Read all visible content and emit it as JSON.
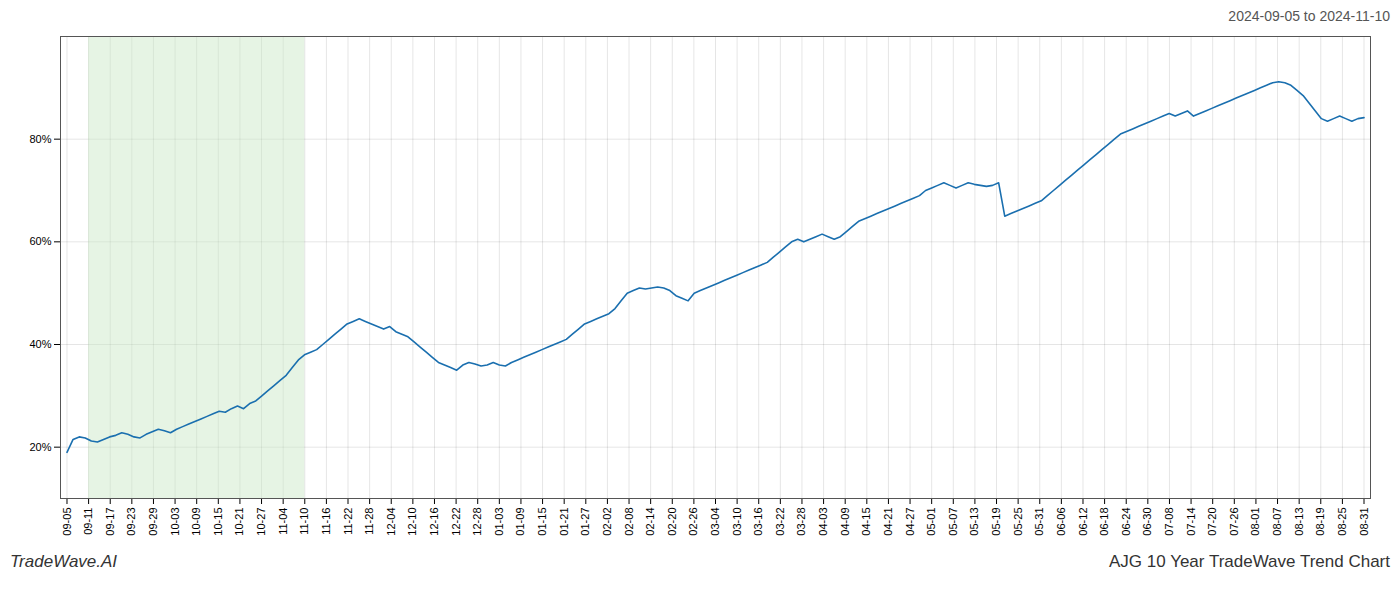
{
  "chart_data": {
    "type": "line",
    "title": "AJG 10 Year TradeWave Trend Chart",
    "subtitle": "2024-09-05 to 2024-11-10",
    "annotations": [
      "TradeWave.AI"
    ],
    "color": "#1a6faf",
    "grid": true,
    "highlight": {
      "x": [
        1,
        11
      ],
      "color": "#c8e6c3"
    },
    "xlim": [
      -0.3,
      60.3
    ],
    "xticks": [
      {
        "value": 0,
        "label": "09-05"
      },
      {
        "value": 1,
        "label": "09-11"
      },
      {
        "value": 2,
        "label": "09-17"
      },
      {
        "value": 3,
        "label": "09-23"
      },
      {
        "value": 4,
        "label": "09-29"
      },
      {
        "value": 5,
        "label": "10-03"
      },
      {
        "value": 6,
        "label": "10-09"
      },
      {
        "value": 7,
        "label": "10-15"
      },
      {
        "value": 8,
        "label": "10-21"
      },
      {
        "value": 9,
        "label": "10-27"
      },
      {
        "value": 10,
        "label": "11-04"
      },
      {
        "value": 11,
        "label": "11-10"
      },
      {
        "value": 12,
        "label": "11-16"
      },
      {
        "value": 13,
        "label": "11-22"
      },
      {
        "value": 14,
        "label": "11-28"
      },
      {
        "value": 15,
        "label": "12-04"
      },
      {
        "value": 16,
        "label": "12-10"
      },
      {
        "value": 17,
        "label": "12-16"
      },
      {
        "value": 18,
        "label": "12-22"
      },
      {
        "value": 19,
        "label": "12-28"
      },
      {
        "value": 20,
        "label": "01-03"
      },
      {
        "value": 21,
        "label": "01-09"
      },
      {
        "value": 22,
        "label": "01-15"
      },
      {
        "value": 23,
        "label": "01-21"
      },
      {
        "value": 24,
        "label": "01-27"
      },
      {
        "value": 25,
        "label": "02-02"
      },
      {
        "value": 26,
        "label": "02-08"
      },
      {
        "value": 27,
        "label": "02-14"
      },
      {
        "value": 28,
        "label": "02-20"
      },
      {
        "value": 29,
        "label": "02-26"
      },
      {
        "value": 30,
        "label": "03-04"
      },
      {
        "value": 31,
        "label": "03-10"
      },
      {
        "value": 32,
        "label": "03-16"
      },
      {
        "value": 33,
        "label": "03-22"
      },
      {
        "value": 34,
        "label": "03-28"
      },
      {
        "value": 35,
        "label": "04-03"
      },
      {
        "value": 36,
        "label": "04-09"
      },
      {
        "value": 37,
        "label": "04-15"
      },
      {
        "value": 38,
        "label": "04-21"
      },
      {
        "value": 39,
        "label": "04-27"
      },
      {
        "value": 40,
        "label": "05-01"
      },
      {
        "value": 41,
        "label": "05-07"
      },
      {
        "value": 42,
        "label": "05-13"
      },
      {
        "value": 43,
        "label": "05-19"
      },
      {
        "value": 44,
        "label": "05-25"
      },
      {
        "value": 45,
        "label": "05-31"
      },
      {
        "value": 46,
        "label": "06-06"
      },
      {
        "value": 47,
        "label": "06-12"
      },
      {
        "value": 48,
        "label": "06-18"
      },
      {
        "value": 49,
        "label": "06-24"
      },
      {
        "value": 50,
        "label": "06-30"
      },
      {
        "value": 51,
        "label": "07-08"
      },
      {
        "value": 52,
        "label": "07-14"
      },
      {
        "value": 53,
        "label": "07-20"
      },
      {
        "value": 54,
        "label": "07-26"
      },
      {
        "value": 55,
        "label": "08-01"
      },
      {
        "value": 56,
        "label": "08-07"
      },
      {
        "value": 57,
        "label": "08-13"
      },
      {
        "value": 58,
        "label": "08-19"
      },
      {
        "value": 59,
        "label": "08-25"
      },
      {
        "value": 60,
        "label": "08-31"
      }
    ],
    "ylim": [
      10,
      100
    ],
    "yticks": [
      {
        "value": 20,
        "label": "20%"
      },
      {
        "value": 40,
        "label": "40%"
      },
      {
        "value": 60,
        "label": "60%"
      },
      {
        "value": 80,
        "label": "80%"
      }
    ],
    "x": [
      0,
      0.2817,
      0.5634,
      0.8451,
      1.1268,
      1.4085,
      1.6901,
      1.9718,
      2.2535,
      2.5352,
      2.8169,
      3.0986,
      3.3803,
      3.662,
      3.9437,
      4.2254,
      4.507,
      4.7887,
      5.0704,
      5.3521,
      5.6338,
      5.9155,
      6.1972,
      6.4789,
      6.7606,
      7.0423,
      7.3239,
      7.6056,
      7.8873,
      8.169,
      8.4507,
      8.7324,
      9.0141,
      9.2958,
      9.5775,
      9.8592,
      10.1408,
      10.4225,
      10.7042,
      10.9859,
      11.2676,
      11.5493,
      11.831,
      12.1127,
      12.3944,
      12.6761,
      12.9577,
      13.2394,
      13.5211,
      13.8028,
      14.0845,
      14.3662,
      14.6479,
      14.9296,
      15.2113,
      15.493,
      15.7746,
      16.0563,
      16.338,
      16.6197,
      16.9014,
      17.1831,
      17.4648,
      17.7465,
      18.0282,
      18.3099,
      18.5915,
      18.8732,
      19.1549,
      19.4366,
      19.7183,
      20,
      20.2817,
      20.5634,
      20.8451,
      21.1268,
      21.4085,
      21.6901,
      21.9718,
      22.2535,
      22.5352,
      22.8169,
      23.0986,
      23.3803,
      23.662,
      23.9437,
      24.2254,
      24.507,
      24.7887,
      25.0704,
      25.3521,
      25.6338,
      25.9155,
      26.1972,
      26.4789,
      26.7606,
      27.0423,
      27.3239,
      27.6056,
      27.8873,
      28.169,
      28.4507,
      28.7324,
      29.0141,
      29.2958,
      29.5775,
      29.8592,
      30.1408,
      30.4225,
      30.7042,
      30.9859,
      31.2676,
      31.5493,
      31.831,
      32.1127,
      32.3944,
      32.6761,
      32.9577,
      33.2394,
      33.5211,
      33.8028,
      34.0845,
      34.3662,
      34.6479,
      34.9296,
      35.2113,
      35.493,
      35.7746,
      36.0563,
      36.338,
      36.6197,
      36.9014,
      37.1831,
      37.4648,
      37.7465,
      38.0282,
      38.3099,
      38.5915,
      38.8732,
      39.1549,
      39.4366,
      39.7183,
      40,
      40.2817,
      40.5634,
      40.8451,
      41.1268,
      41.4085,
      41.6901,
      41.9718,
      42.2535,
      42.5352,
      42.8169,
      43.0986,
      43.3803,
      43.662,
      43.9437,
      44.2254,
      44.507,
      44.7887,
      45.0704,
      45.3521,
      45.6338,
      45.9155,
      46.1972,
      46.4789,
      46.7606,
      47.0423,
      47.3239,
      47.6056,
      47.8873,
      48.169,
      48.4507,
      48.7324,
      49.0141,
      49.2958,
      49.5775,
      49.8592,
      50.1408,
      50.4225,
      50.7042,
      50.9859,
      51.2676,
      51.5493,
      51.831,
      52.1127,
      52.3944,
      52.6761,
      52.9577,
      53.2394,
      53.5211,
      53.8028,
      54.0845,
      54.3662,
      54.6479,
      54.9296,
      55.2113,
      55.493,
      55.7746,
      56.0563,
      56.338,
      56.6197,
      56.9014,
      57.1831,
      57.4648,
      57.7465,
      58.0282,
      58.3099,
      58.5915,
      58.8732,
      59.1549,
      59.4366,
      59.7183,
      60
    ],
    "values": [
      19.0,
      21.5,
      22.0,
      21.8,
      21.2,
      21.0,
      21.5,
      22.0,
      22.3,
      22.8,
      22.5,
      22.0,
      21.8,
      22.5,
      23.0,
      23.5,
      23.2,
      22.8,
      23.5,
      24.0,
      24.5,
      25.0,
      25.5,
      26.0,
      26.5,
      27.0,
      26.8,
      27.5,
      28.0,
      27.5,
      28.5,
      29.0,
      30.0,
      31.0,
      32.0,
      33.0,
      34.0,
      35.5,
      37.0,
      38.0,
      38.5,
      39.0,
      40.0,
      41.0,
      42.0,
      43.0,
      44.0,
      44.5,
      45.0,
      44.5,
      44.0,
      43.5,
      43.0,
      43.5,
      42.5,
      42.0,
      41.5,
      40.5,
      39.5,
      38.5,
      37.5,
      36.5,
      36.0,
      35.5,
      35.0,
      36.0,
      36.5,
      36.2,
      35.8,
      36.0,
      36.5,
      36.0,
      35.8,
      36.5,
      37.0,
      37.5,
      38.0,
      38.5,
      39.0,
      39.5,
      40.0,
      40.5,
      41.0,
      42.0,
      43.0,
      44.0,
      44.5,
      45.0,
      45.5,
      46.0,
      47.0,
      48.5,
      50.0,
      50.5,
      51.0,
      50.8,
      51.0,
      51.2,
      51.0,
      50.5,
      49.5,
      49.0,
      48.5,
      50.0,
      50.5,
      51.0,
      51.5,
      52.0,
      52.5,
      53.0,
      53.5,
      54.0,
      54.5,
      55.0,
      55.5,
      56.0,
      57.0,
      58.0,
      59.0,
      60.0,
      60.5,
      60.0,
      60.5,
      61.0,
      61.5,
      61.0,
      60.5,
      61.0,
      62.0,
      63.0,
      64.0,
      64.5,
      65.0,
      65.5,
      66.0,
      66.5,
      67.0,
      67.5,
      68.0,
      68.5,
      69.0,
      70.0,
      70.5,
      71.0,
      71.5,
      71.0,
      70.5,
      71.0,
      71.5,
      71.2,
      71.0,
      70.8,
      71.0,
      71.5,
      65.0,
      65.5,
      66.0,
      66.5,
      67.0,
      67.5,
      68.0,
      69.0,
      70.0,
      71.0,
      72.0,
      73.0,
      74.0,
      75.0,
      76.0,
      77.0,
      78.0,
      79.0,
      80.0,
      81.0,
      81.5,
      82.0,
      82.5,
      83.0,
      83.5,
      84.0,
      84.5,
      85.0,
      84.5,
      85.0,
      85.5,
      84.5,
      85.0,
      85.5,
      86.0,
      86.5,
      87.0,
      87.5,
      88.0,
      88.5,
      89.0,
      89.5,
      90.0,
      90.5,
      91.0,
      91.2,
      91.0,
      90.5,
      89.5,
      88.5,
      87.0,
      85.5,
      84.0,
      83.5,
      84.0,
      84.5,
      84.0,
      83.5,
      84.0,
      84.2
    ]
  }
}
